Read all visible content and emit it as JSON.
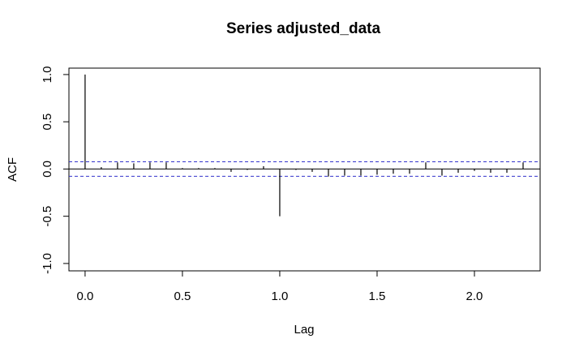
{
  "chart_data": {
    "type": "acf",
    "title": "Series  adjusted_data",
    "x_label": "Lag",
    "y_label": "ACF",
    "x": [
      0,
      0.0833,
      0.1667,
      0.25,
      0.3333,
      0.4167,
      0.5,
      0.5833,
      0.6667,
      0.75,
      0.8333,
      0.9167,
      1.0,
      1.0833,
      1.1667,
      1.25,
      1.3333,
      1.4167,
      1.5,
      1.5833,
      1.6667,
      1.75,
      1.8333,
      1.9167,
      2.0,
      2.0833,
      2.1667,
      2.25
    ],
    "values": [
      1.0,
      0.02,
      0.07,
      0.06,
      0.07,
      0.07,
      0.01,
      0.01,
      0.01,
      -0.03,
      -0.01,
      0.03,
      -0.5,
      -0.01,
      -0.03,
      -0.08,
      -0.07,
      -0.07,
      -0.06,
      -0.05,
      -0.05,
      0.07,
      -0.07,
      -0.04,
      -0.02,
      -0.04,
      -0.04,
      0.07
    ],
    "color": "#000000",
    "ci_lines": [
      0.077,
      -0.077
    ],
    "ci_color": "#3333cc",
    "xlim": [
      -0.083,
      2.3375
    ],
    "ylim": [
      -1.078,
      1.068
    ],
    "xticks": [
      {
        "value": 0,
        "label": "0.0"
      },
      {
        "value": 0.5,
        "label": "0.5"
      },
      {
        "value": 1,
        "label": "1.0"
      },
      {
        "value": 1.5,
        "label": "1.5"
      },
      {
        "value": 2,
        "label": "2.0"
      }
    ],
    "yticks": [
      {
        "value": -1,
        "label": "-1.0"
      },
      {
        "value": -0.5,
        "label": "-0.5"
      },
      {
        "value": 0,
        "label": "0.0"
      },
      {
        "value": 0.5,
        "label": "0.5"
      },
      {
        "value": 1,
        "label": "1.0"
      }
    ]
  }
}
